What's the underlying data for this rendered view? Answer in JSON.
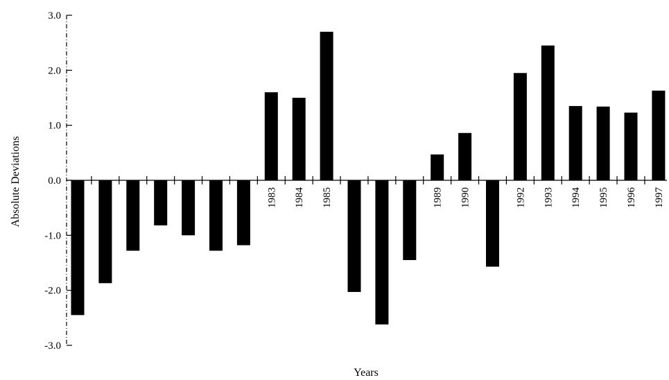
{
  "chart_data": {
    "type": "bar",
    "title": "",
    "xlabel": "Years",
    "ylabel": "Absolute Deviations",
    "ylim": [
      -3.0,
      3.0
    ],
    "yticks": [
      "3.0",
      "2.0",
      "1.0",
      "0.0",
      "-1.0",
      "-2.0",
      "-3.0"
    ],
    "ytick_values": [
      3.0,
      2.0,
      1.0,
      0.0,
      -1.0,
      -2.0,
      -3.0
    ],
    "grid": false,
    "bar_color": "#000000",
    "categories": [
      "",
      "",
      "",
      "",
      "",
      "",
      "",
      "1983",
      "1984",
      "1985",
      "",
      "",
      "",
      "1989",
      "1990",
      "",
      "1992",
      "1993",
      "1994",
      "1995",
      "1996",
      "1997"
    ],
    "values": [
      -2.45,
      -1.87,
      -1.28,
      -0.82,
      -1.0,
      -1.28,
      -1.18,
      1.6,
      1.5,
      2.7,
      -2.03,
      -2.62,
      -1.45,
      0.47,
      0.86,
      -1.57,
      1.95,
      2.45,
      1.35,
      1.34,
      1.23,
      1.63
    ]
  }
}
